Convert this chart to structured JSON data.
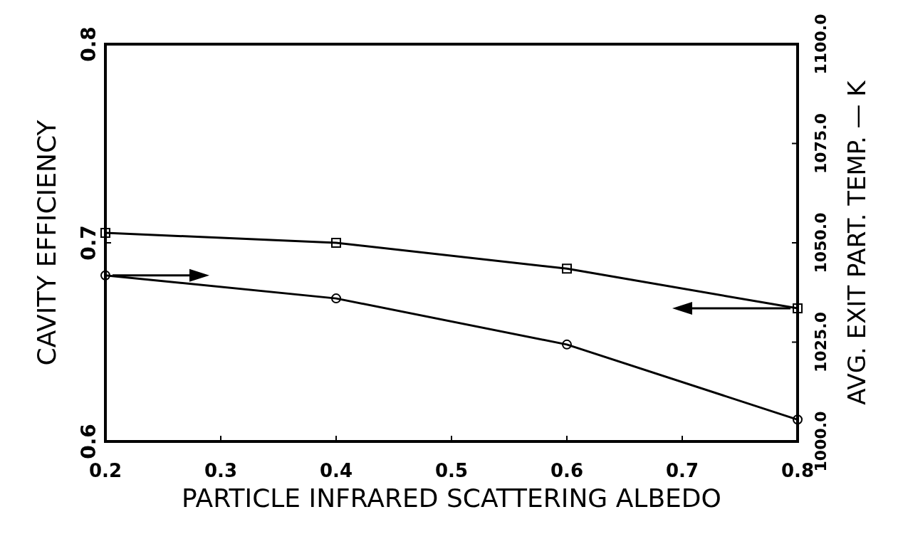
{
  "chart_data": {
    "type": "line",
    "xlabel": "PARTICLE INFRARED SCATTERING ALBEDO",
    "ylabel": "CAVITY EFFICIENCY",
    "y2label": "AVG. EXIT PART. TEMP. — K",
    "x": [
      0.2,
      0.4,
      0.6,
      0.8
    ],
    "xlim": [
      0.2,
      0.8
    ],
    "xticks": [
      0.2,
      0.3,
      0.4,
      0.5,
      0.6,
      0.7,
      0.8
    ],
    "ylim": [
      0.6,
      0.8
    ],
    "yticks": [
      0.6,
      0.7,
      0.8
    ],
    "y2lim": [
      1000,
      1100
    ],
    "y2ticks": [
      {
        "value": 1000,
        "label": "1000.0"
      },
      {
        "value": 1025,
        "label": "1025.0"
      },
      {
        "value": 1050,
        "label": "1050.0"
      },
      {
        "value": 1075,
        "label": "1075.0"
      },
      {
        "value": 1100,
        "label": "1100.0"
      }
    ],
    "series": [
      {
        "color": "#000000",
        "values": [
          0.705,
          0.7,
          0.687,
          0.667
        ],
        "marker": "square"
      },
      {
        "color": "#000000",
        "values": [
          1041.8,
          1036,
          1024.4,
          1005.5
        ],
        "marker": "circle",
        "axis": "y2"
      }
    ],
    "grid": false,
    "legend": false,
    "line_style": "solid"
  }
}
